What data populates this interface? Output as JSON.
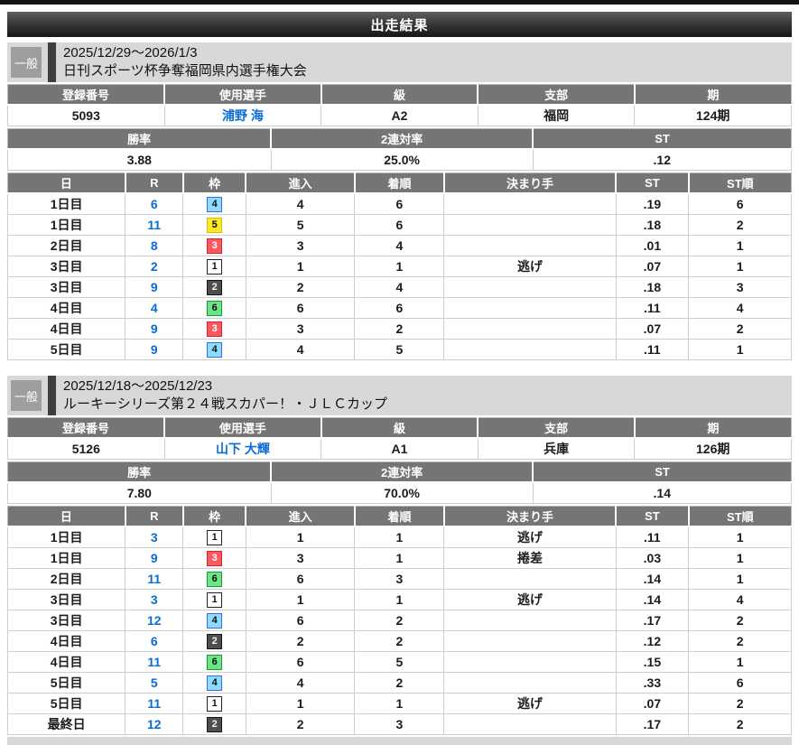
{
  "page": {
    "title": "出走結果"
  },
  "colors": {
    "accent_link_blue": "#0b6cd4",
    "table_header_gray": "#757575",
    "section_background": "#d8d8d8",
    "title_bar_dark": "#151515",
    "frame_1": "#ffffff",
    "frame_2": "#4e4e4e",
    "frame_3": "#f9595f",
    "frame_4": "#8edbff",
    "frame_5": "#fcea26",
    "frame_6": "#6fe388"
  },
  "sections": [
    {
      "badge": "一般",
      "date_range": "2025/12/29～2026/1/3",
      "event_name": "日刊スポーツ杯争奪福岡県内選手権大会",
      "racer_table": {
        "headers": [
          "登録番号",
          "使用選手",
          "級",
          "支部",
          "期"
        ],
        "values": [
          "5093",
          "浦野 海",
          "A2",
          "福岡",
          "124期"
        ]
      },
      "stats_table": {
        "headers": [
          "勝率",
          "2連対率",
          "ST"
        ],
        "values": [
          "3.88",
          "25.0%",
          ".12"
        ]
      },
      "results_table": {
        "headers": [
          "日",
          "R",
          "枠",
          "進入",
          "着順",
          "決まり手",
          "ST",
          "ST順"
        ],
        "rows": [
          {
            "day": "1日目",
            "r": "6",
            "frame": "4",
            "entry": "4",
            "finish": "6",
            "kimarite": "",
            "st": ".19",
            "st_rank": "6"
          },
          {
            "day": "1日目",
            "r": "11",
            "frame": "5",
            "entry": "5",
            "finish": "6",
            "kimarite": "",
            "st": ".18",
            "st_rank": "2"
          },
          {
            "day": "2日目",
            "r": "8",
            "frame": "3",
            "entry": "3",
            "finish": "4",
            "kimarite": "",
            "st": ".01",
            "st_rank": "1"
          },
          {
            "day": "3日目",
            "r": "2",
            "frame": "1",
            "entry": "1",
            "finish": "1",
            "kimarite": "逃げ",
            "st": ".07",
            "st_rank": "1"
          },
          {
            "day": "3日目",
            "r": "9",
            "frame": "2",
            "entry": "2",
            "finish": "4",
            "kimarite": "",
            "st": ".18",
            "st_rank": "3"
          },
          {
            "day": "4日目",
            "r": "4",
            "frame": "6",
            "entry": "6",
            "finish": "6",
            "kimarite": "",
            "st": ".11",
            "st_rank": "4"
          },
          {
            "day": "4日目",
            "r": "9",
            "frame": "3",
            "entry": "3",
            "finish": "2",
            "kimarite": "",
            "st": ".07",
            "st_rank": "2"
          },
          {
            "day": "5日目",
            "r": "9",
            "frame": "4",
            "entry": "4",
            "finish": "5",
            "kimarite": "",
            "st": ".11",
            "st_rank": "1"
          }
        ]
      }
    },
    {
      "badge": "一般",
      "date_range": "2025/12/18～2025/12/23",
      "event_name": "ルーキーシリーズ第２４戦スカパー！・ＪＬＣカップ",
      "racer_table": {
        "headers": [
          "登録番号",
          "使用選手",
          "級",
          "支部",
          "期"
        ],
        "values": [
          "5126",
          "山下 大輝",
          "A1",
          "兵庫",
          "126期"
        ]
      },
      "stats_table": {
        "headers": [
          "勝率",
          "2連対率",
          "ST"
        ],
        "values": [
          "7.80",
          "70.0%",
          ".14"
        ]
      },
      "results_table": {
        "headers": [
          "日",
          "R",
          "枠",
          "進入",
          "着順",
          "決まり手",
          "ST",
          "ST順"
        ],
        "rows": [
          {
            "day": "1日目",
            "r": "3",
            "frame": "1",
            "entry": "1",
            "finish": "1",
            "kimarite": "逃げ",
            "st": ".11",
            "st_rank": "1"
          },
          {
            "day": "1日目",
            "r": "9",
            "frame": "3",
            "entry": "3",
            "finish": "1",
            "kimarite": "捲差",
            "st": ".03",
            "st_rank": "1"
          },
          {
            "day": "2日目",
            "r": "11",
            "frame": "6",
            "entry": "6",
            "finish": "3",
            "kimarite": "",
            "st": ".14",
            "st_rank": "1"
          },
          {
            "day": "3日目",
            "r": "3",
            "frame": "1",
            "entry": "1",
            "finish": "1",
            "kimarite": "逃げ",
            "st": ".14",
            "st_rank": "4"
          },
          {
            "day": "3日目",
            "r": "12",
            "frame": "4",
            "entry": "6",
            "finish": "2",
            "kimarite": "",
            "st": ".17",
            "st_rank": "2"
          },
          {
            "day": "4日目",
            "r": "6",
            "frame": "2",
            "entry": "2",
            "finish": "2",
            "kimarite": "",
            "st": ".12",
            "st_rank": "2"
          },
          {
            "day": "4日目",
            "r": "11",
            "frame": "6",
            "entry": "6",
            "finish": "5",
            "kimarite": "",
            "st": ".15",
            "st_rank": "1"
          },
          {
            "day": "5日目",
            "r": "5",
            "frame": "4",
            "entry": "4",
            "finish": "2",
            "kimarite": "",
            "st": ".33",
            "st_rank": "6"
          },
          {
            "day": "5日目",
            "r": "11",
            "frame": "1",
            "entry": "1",
            "finish": "1",
            "kimarite": "逃げ",
            "st": ".07",
            "st_rank": "2"
          },
          {
            "day": "最終日",
            "r": "12",
            "frame": "2",
            "entry": "2",
            "finish": "3",
            "kimarite": "",
            "st": ".17",
            "st_rank": "2"
          }
        ]
      }
    }
  ]
}
